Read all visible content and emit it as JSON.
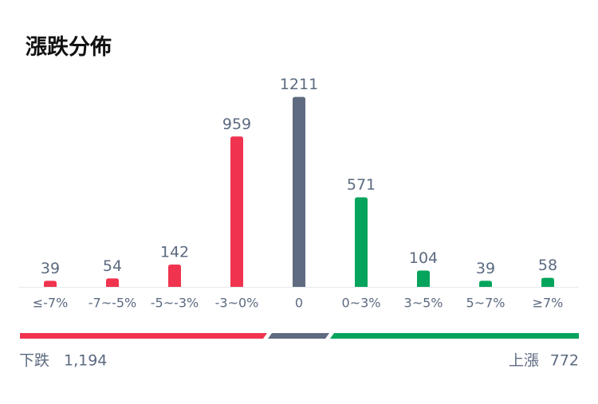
{
  "chart_data": {
    "type": "bar",
    "title": "漲跌分佈",
    "categories": [
      "≤-7%",
      "-7~-5%",
      "-5~-3%",
      "-3~0%",
      "0",
      "0~3%",
      "3~5%",
      "5~7%",
      "≥7%"
    ],
    "values": [
      39,
      54,
      142,
      959,
      1211,
      571,
      104,
      39,
      58
    ],
    "colors": [
      "#f0344f",
      "#f0344f",
      "#f0344f",
      "#f0344f",
      "#5f6b80",
      "#05a45c",
      "#05a45c",
      "#05a45c",
      "#05a45c"
    ],
    "ylim": [
      0,
      1250
    ],
    "summary": {
      "down_label": "下跌",
      "down": {
        "value": 1194,
        "label": "1,194"
      },
      "up_label": "上漲",
      "up": {
        "value": 772,
        "label": "772"
      }
    }
  }
}
